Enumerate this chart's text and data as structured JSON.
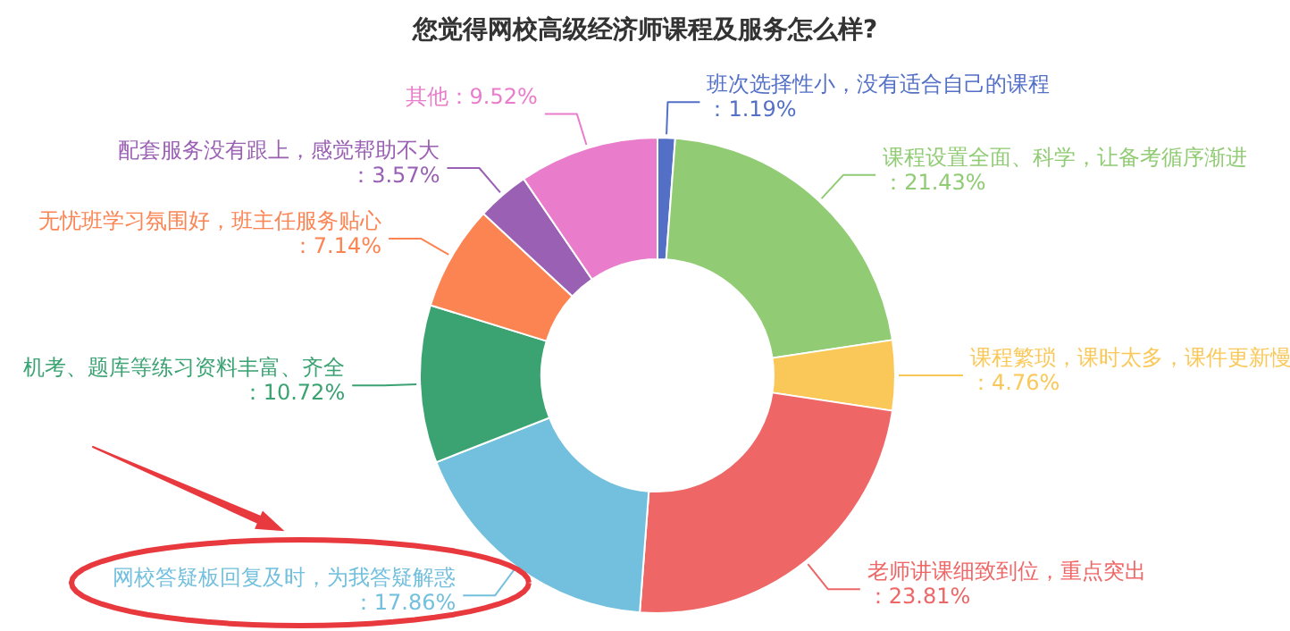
{
  "chart_data": {
    "type": "donut",
    "title": "您觉得网校高级经济师课程及服务怎么样?",
    "categories": [
      "班次选择性小，没有适合自己的课程",
      "课程设置全面、科学，让备考循序渐进",
      "课程繁琐，课时太多，课件更新慢",
      "老师讲课细致到位，重点突出",
      "网校答疑板回复及时，为我答疑解惑",
      "机考、题库等练习资料丰富、齐全",
      "无忧班学习氛围好，班主任服务贴心",
      "配套服务没有跟上，感觉帮助不大",
      "其他"
    ],
    "values": [
      1.19,
      21.43,
      4.76,
      23.81,
      17.86,
      10.72,
      7.14,
      3.57,
      9.52
    ],
    "colors": [
      "#5470c6",
      "#91cc75",
      "#fac858",
      "#ee6666",
      "#73c0de",
      "#3ba272",
      "#fc8452",
      "#9a60b4",
      "#ea7ccc"
    ],
    "value_labels": [
      "：1.19%",
      "：21.43%",
      "：4.76%",
      "：23.81%",
      "：17.86%",
      "：10.72%",
      "：7.14%",
      "：3.57%",
      "：9.52%"
    ]
  }
}
